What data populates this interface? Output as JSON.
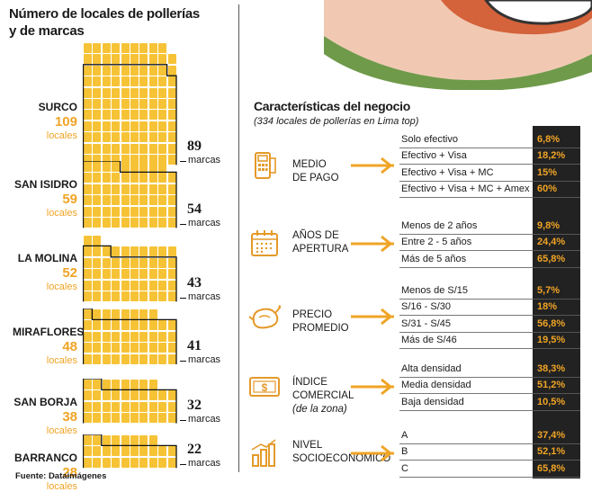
{
  "left": {
    "title_line1": "Número de locales de pollerías",
    "title_line2": "y de marcas",
    "source": "Fuente: Dataimágenes",
    "locales_label": "locales",
    "marcas_label": "marcas"
  },
  "chart_data": [
    {
      "type": "bar",
      "title": "Número de locales de pollerías y de marcas",
      "categories": [
        "SURCO",
        "SAN ISIDRO",
        "LA MOLINA",
        "MIRAFLORES",
        "SAN BORJA",
        "BARRANCO"
      ],
      "series": [
        {
          "name": "locales",
          "values": [
            109,
            59,
            52,
            48,
            38,
            28
          ]
        },
        {
          "name": "marcas",
          "values": [
            89,
            54,
            43,
            41,
            32,
            22
          ]
        }
      ],
      "districts": [
        {
          "name": "SURCO",
          "locales": "109",
          "marcas": "89"
        },
        {
          "name": "SAN ISIDRO",
          "locales": "59",
          "marcas": "54"
        },
        {
          "name": "LA MOLINA",
          "locales": "52",
          "marcas": "43"
        },
        {
          "name": "MIRAFLORES",
          "locales": "48",
          "marcas": "41"
        },
        {
          "name": "SAN BORJA",
          "locales": "38",
          "marcas": "32"
        },
        {
          "name": "BARRANCO",
          "locales": "28",
          "marcas": "22"
        }
      ]
    },
    {
      "type": "table",
      "title": "Características del negocio",
      "subtitle": "(334 locales de pollerías en Lima top)",
      "sections": [
        {
          "label1": "MEDIO",
          "label2": "DE PAGO",
          "label3": "",
          "icon": "pos-terminal-icon",
          "rows": [
            [
              "Solo efectivo",
              "6,8%"
            ],
            [
              "Efectivo + Visa",
              "18,2%"
            ],
            [
              "Efectivo + Visa + MC",
              "15%"
            ],
            [
              "Efectivo + Visa + MC + Amex",
              "60%"
            ]
          ]
        },
        {
          "label1": "AÑOS DE",
          "label2": "APERTURA",
          "label3": "",
          "icon": "calendar-icon",
          "rows": [
            [
              "Menos de 2 años",
              "9,8%"
            ],
            [
              "Entre 2 - 5 años",
              "24,4%"
            ],
            [
              "Más de 5 años",
              "65,8%"
            ]
          ]
        },
        {
          "label1": "PRECIO",
          "label2": "PROMEDIO",
          "label3": "",
          "icon": "roast-chicken-icon",
          "rows": [
            [
              "Menos de S/15",
              "5,7%"
            ],
            [
              "S/16 - S/30",
              "18%"
            ],
            [
              "S/31 - S/45",
              "56,8%"
            ],
            [
              "Más de S/46",
              "19,5%"
            ]
          ]
        },
        {
          "label1": "ÍNDICE",
          "label2": "COMERCIAL",
          "label3": "(de la zona)",
          "icon": "money-bill-icon",
          "rows": [
            [
              "Alta densidad",
              "38,3%"
            ],
            [
              "Media densidad",
              "51,2%"
            ],
            [
              "Baja densidad",
              "10,5%"
            ]
          ]
        },
        {
          "label1": "NIVEL",
          "label2": "SOCIOECONÓMICO",
          "label3": "",
          "icon": "bar-chart-icon",
          "rows": [
            [
              "A",
              "37,4%"
            ],
            [
              "B",
              "52,1%"
            ],
            [
              "C",
              "65,8%"
            ]
          ]
        }
      ]
    }
  ],
  "colors": {
    "accent": "#f0a426",
    "square": "#f6c336",
    "dark": "#222222"
  }
}
